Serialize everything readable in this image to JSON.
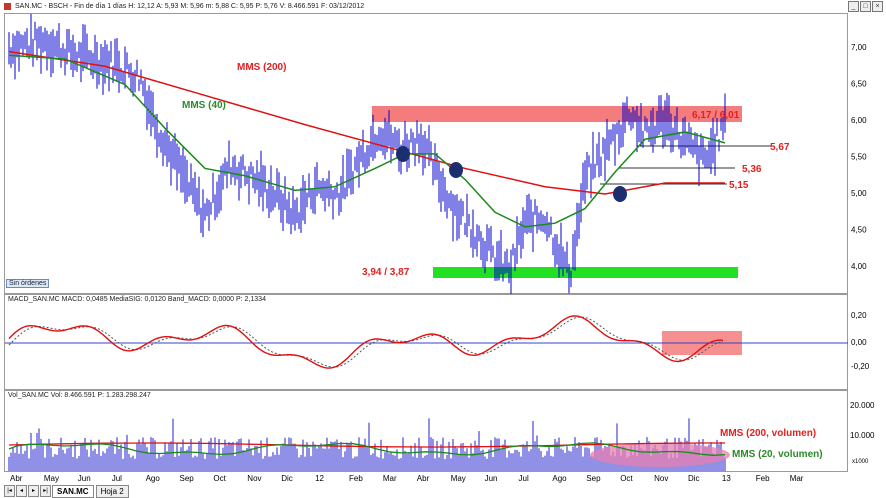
{
  "header": {
    "title": "SAN.MC - BSCH - Fin de día 1 días  H: 12,12  A: 5,93  M: 5,96  m: 5,88  C: 5,95  P: 5,76  V: 8.466.591  F: 03/12/2012"
  },
  "window_controls": {
    "minimize": "_",
    "maximize": "□",
    "close": "×"
  },
  "price_panel": {
    "yticks": [
      "7,00",
      "6,50",
      "6,00",
      "5,50",
      "5,00",
      "4,50",
      "4,00"
    ],
    "annotations": {
      "mms200": "MMS (200)",
      "mms40": "MMS (40)",
      "resistance": "6,17 / 6,01",
      "level_567": "5,67",
      "level_536": "5,36",
      "level_515": "5,15",
      "support": "3,94 / 3,87"
    },
    "sin_ordenes": "Sin órdenes",
    "colors": {
      "price": "#0000cc",
      "mms200": "#e01010",
      "mms40": "#1a8a1a",
      "resistance_band": "#f47c7c",
      "support_band": "#22e022",
      "marker": "#1b2f6e"
    }
  },
  "macd_panel": {
    "header": "MACD_SAN.MC  MACD: 0,0485  MediaSIG: 0,0120  Band_MACD: 0,0000  P: 2,1334",
    "yticks": [
      "0,20",
      "0,00",
      "-0,20"
    ]
  },
  "volume_panel": {
    "header": "Vol_SAN.MC  Vol: 8.466.591  P: 1.283.298.247",
    "yticks": [
      "20.000",
      "10.000",
      "x1000"
    ],
    "annotations": {
      "mms200_vol": "MMS (200, volumen)",
      "mms20_vol": "MMS (20, volumen)"
    }
  },
  "x_axis": {
    "labels": [
      "Abr",
      "May",
      "Jun",
      "Jul",
      "Ago",
      "Sep",
      "Oct",
      "Nov",
      "Dic",
      "12",
      "Feb",
      "Mar",
      "Abr",
      "May",
      "Jun",
      "Jul",
      "Ago",
      "Sep",
      "Oct",
      "Nov",
      "Dic",
      "13",
      "Feb",
      "Mar"
    ]
  },
  "tabs": {
    "nav": [
      "|◂",
      "◂",
      "▸",
      "▸|"
    ],
    "items": [
      "SAN.MC",
      "Hoja 2"
    ]
  }
}
